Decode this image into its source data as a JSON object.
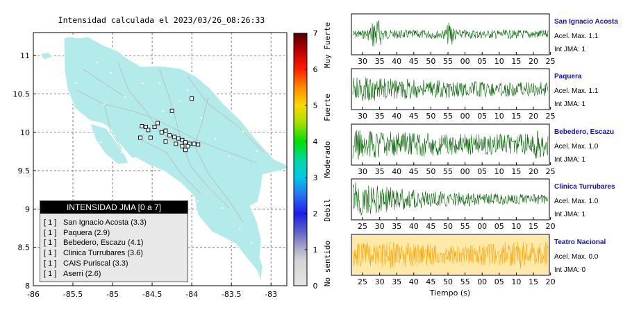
{
  "title": "Intensidad calculada el 2023/03/26_08:26:33",
  "map": {
    "x_ticks": [
      "-86",
      "-85.5",
      "-85",
      "-84.5",
      "-84",
      "-83.5",
      "-83"
    ],
    "y_ticks": [
      "11",
      "10.5",
      "10",
      "9.5",
      "9",
      "8.5",
      "8"
    ],
    "x_range": [
      -86,
      -82.8
    ],
    "y_range": [
      8,
      11.3
    ],
    "land_color": "#b3eaea",
    "stations": [
      {
        "lon": -84.63,
        "lat": 10.08
      },
      {
        "lon": -84.58,
        "lat": 10.07
      },
      {
        "lon": -84.47,
        "lat": 10.07
      },
      {
        "lon": -84.55,
        "lat": 10.03
      },
      {
        "lon": -84.43,
        "lat": 10.12
      },
      {
        "lon": -84.38,
        "lat": 10.0
      },
      {
        "lon": -84.33,
        "lat": 10.02
      },
      {
        "lon": -84.28,
        "lat": 9.96
      },
      {
        "lon": -84.22,
        "lat": 9.94
      },
      {
        "lon": -84.17,
        "lat": 9.92
      },
      {
        "lon": -84.12,
        "lat": 9.9
      },
      {
        "lon": -84.08,
        "lat": 9.87
      },
      {
        "lon": -84.03,
        "lat": 9.85
      },
      {
        "lon": -83.97,
        "lat": 9.85
      },
      {
        "lon": -84.12,
        "lat": 9.82
      },
      {
        "lon": -84.05,
        "lat": 9.82
      },
      {
        "lon": -84.2,
        "lat": 9.85
      },
      {
        "lon": -84.33,
        "lat": 9.88
      },
      {
        "lon": -84.65,
        "lat": 9.93
      },
      {
        "lon": -84.52,
        "lat": 9.93
      },
      {
        "lon": -84.08,
        "lat": 9.77
      },
      {
        "lon": -83.92,
        "lat": 9.84
      },
      {
        "lon": -84.25,
        "lat": 10.28
      },
      {
        "lon": -84.0,
        "lat": 10.44
      }
    ]
  },
  "legend": {
    "title": "INTENSIDAD JMA [0 a 7]",
    "entries": [
      {
        "int": "[ 1 ]",
        "label": "San Ignacio Acosta (3.3)"
      },
      {
        "int": "[ 1 ]",
        "label": "Paquera (2.9)"
      },
      {
        "int": "[ 1 ]",
        "label": "Bebedero, Escazu (4.1)"
      },
      {
        "int": "[ 1 ]",
        "label": "Clinica Turrubares (3.6)"
      },
      {
        "int": "[ 1 ]",
        "label": "CAIS Puriscal (3.3)"
      },
      {
        "int": "[ 1 ]",
        "label": "Aserri (2.6)"
      }
    ]
  },
  "colorbar": {
    "ticks": [
      "0",
      "1",
      "2",
      "3",
      "4",
      "5",
      "6",
      "7"
    ],
    "labels": [
      "No sentido",
      "Debil",
      "Moderado",
      "Fuerte",
      "Muy Fuerte"
    ]
  },
  "seismograms": [
    {
      "name": "San Ignacio Acosta",
      "accel": "Acel. Max. 1.1",
      "jma": "Int JMA: 1",
      "color": "#006400",
      "ticks": [
        "30",
        "35",
        "40",
        "45",
        "50",
        "55",
        "00",
        "05",
        "10",
        "15",
        "20",
        "25"
      ]
    },
    {
      "name": "Paquera",
      "accel": "Acel. Max. 1.1",
      "jma": "Int JMA: 1",
      "color": "#006400",
      "ticks": [
        "30",
        "35",
        "40",
        "45",
        "50",
        "55",
        "00",
        "05",
        "10",
        "15",
        "20",
        "25"
      ]
    },
    {
      "name": "Bebedero, Escazu",
      "accel": "Acel. Max. 1.0",
      "jma": "Int JMA: 1",
      "color": "#006400",
      "ticks": [
        "30",
        "35",
        "40",
        "45",
        "50",
        "55",
        "00",
        "05",
        "10",
        "15",
        "20",
        "25"
      ]
    },
    {
      "name": "Clinica Turrubares",
      "accel": "Acel. Max. 1.0",
      "jma": "Int JMA: 1",
      "color": "#006400",
      "ticks": [
        "25",
        "30",
        "35",
        "40",
        "45",
        "50",
        "55",
        "00",
        "05",
        "10",
        "15",
        "20"
      ]
    },
    {
      "name": "Teatro Nacional",
      "accel": "Acel. Max. 0.0",
      "jma": "Int JMA: 0",
      "color": "#ffa500",
      "ticks": [
        "25",
        "30",
        "35",
        "40",
        "45",
        "50",
        "55",
        "00",
        "05",
        "10",
        "15",
        "20"
      ]
    }
  ],
  "xlabel": "Tiempo (s)",
  "chart_data": [
    {
      "type": "scatter",
      "title": "Intensidad calculada el 2023/03/26_08:26:33",
      "xlim": [
        -86,
        -82.8
      ],
      "ylim": [
        8,
        11.3
      ],
      "legend": "bottom-left",
      "series": [
        {
          "name": "INTENSIDAD JMA [0 a 7]",
          "values": [
            1,
            1,
            1,
            1,
            1,
            1
          ]
        }
      ],
      "categories": [
        "San Ignacio Acosta (3.3)",
        "Paquera (2.9)",
        "Bebedero, Escazu (4.1)",
        "Clinica Turrubares (3.6)",
        "CAIS Puriscal (3.3)",
        "Aserri (2.6)"
      ]
    },
    {
      "type": "line",
      "xlabel": "Tiempo (s)",
      "series": [
        {
          "name": "San Ignacio Acosta",
          "values": [
            1.1
          ]
        },
        {
          "name": "Paquera",
          "values": [
            1.1
          ]
        },
        {
          "name": "Bebedero, Escazu",
          "values": [
            1.0
          ]
        },
        {
          "name": "Clinica Turrubares",
          "values": [
            1.0
          ]
        },
        {
          "name": "Teatro Nacional",
          "values": [
            0.0
          ]
        }
      ]
    }
  ]
}
